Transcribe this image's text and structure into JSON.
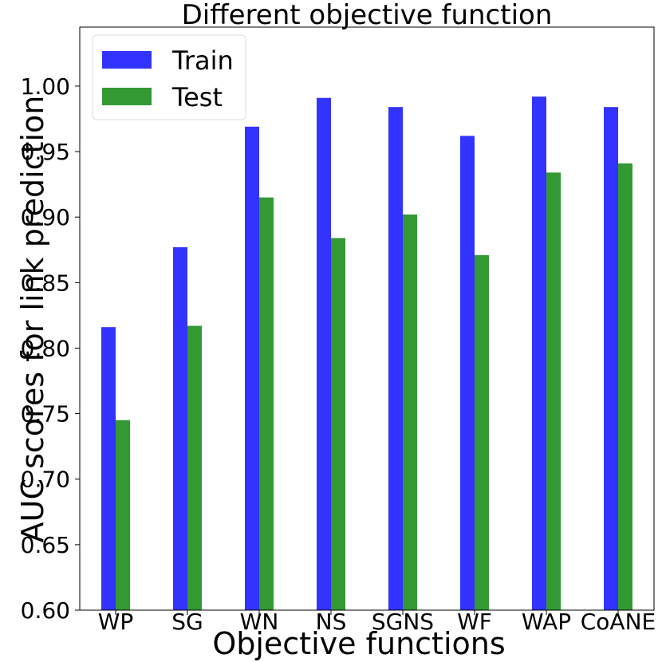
{
  "chart_data": {
    "type": "bar",
    "title": "Different objective function",
    "xlabel": "Objective functions",
    "ylabel": "AUC scores for link prediction",
    "ylim": [
      0.6,
      1.045
    ],
    "yticks": [
      "0.60",
      "0.65",
      "0.70",
      "0.75",
      "0.80",
      "0.85",
      "0.90",
      "0.95",
      "1.00"
    ],
    "categories": [
      "WP",
      "SG",
      "WN",
      "NS",
      "SGNS",
      "WF",
      "WAP",
      "CoANE"
    ],
    "series": [
      {
        "name": "Train",
        "color": "#3333ff",
        "values": [
          0.816,
          0.877,
          0.969,
          0.991,
          0.984,
          0.962,
          0.992,
          0.984
        ]
      },
      {
        "name": "Test",
        "color": "#339933",
        "values": [
          0.745,
          0.817,
          0.915,
          0.884,
          0.902,
          0.871,
          0.934,
          0.941
        ]
      }
    ],
    "legend_position": "top-left"
  }
}
